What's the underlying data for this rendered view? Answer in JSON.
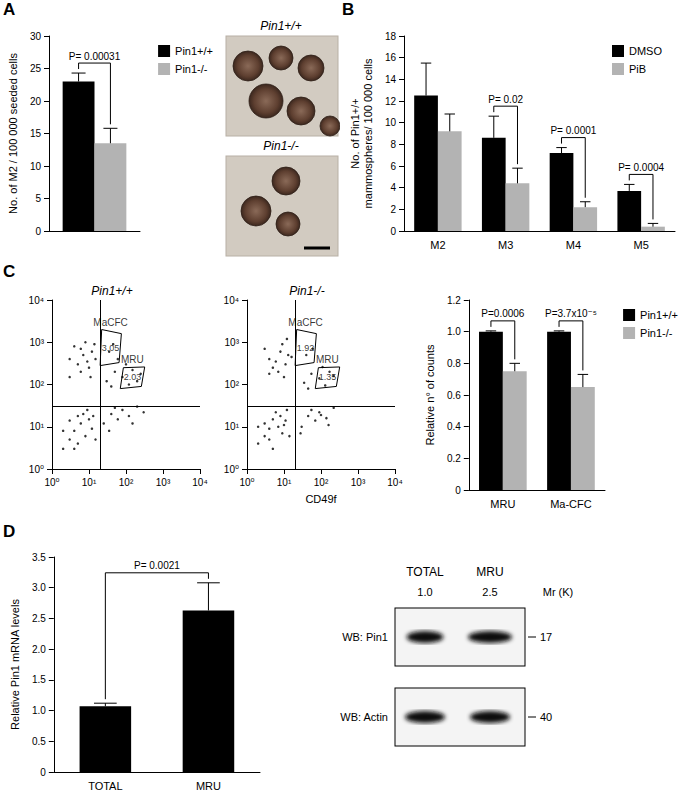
{
  "panel_labels": [
    "A",
    "B",
    "C",
    "D"
  ],
  "micrographs": {
    "labels": [
      "Pin1+/+",
      "Pin1-/-"
    ]
  },
  "chart_data": [
    {
      "type": "bar",
      "ylabel": "No. of M2 / 100 000 seeded cells",
      "categories": [
        null
      ],
      "series": [
        {
          "name": "Pin1+/+",
          "color": "#000000",
          "values": [
            23
          ],
          "errors": [
            1.3
          ]
        },
        {
          "name": "Pin1-/-",
          "color": "#b3b3b3",
          "values": [
            13.5
          ],
          "errors": [
            2.3
          ]
        }
      ],
      "ylim": [
        0,
        30
      ],
      "yticks": [
        0,
        5,
        10,
        15,
        20,
        25,
        30
      ],
      "grid": false,
      "legend": "right",
      "annotations": [
        {
          "text": "P= 0.00031",
          "category": null
        }
      ]
    },
    {
      "type": "bar",
      "ylabel": "No. of Pin1+/+ mammospheres/ 100 000 cells",
      "categories": [
        "M2",
        "M3",
        "M4",
        "M5"
      ],
      "series": [
        {
          "name": "DMSO",
          "color": "#000000",
          "values": [
            12.5,
            8.6,
            7.2,
            3.7
          ],
          "errors": [
            3.0,
            2.0,
            0.5,
            0.6
          ]
        },
        {
          "name": "PiB",
          "color": "#b3b3b3",
          "values": [
            9.2,
            4.4,
            2.2,
            0.4
          ],
          "errors": [
            1.6,
            1.4,
            0.5,
            0.3
          ]
        }
      ],
      "ylim": [
        0,
        18
      ],
      "yticks": [
        0,
        2,
        4,
        6,
        8,
        10,
        12,
        14,
        16,
        18
      ],
      "grid": false,
      "legend": "upper right",
      "annotations": [
        {
          "text": "P= 0.02",
          "category": "M3"
        },
        {
          "text": "P= 0.0001",
          "category": "M4"
        },
        {
          "text": "P= 0.0004",
          "category": "M5"
        }
      ]
    },
    {
      "type": "scatter",
      "title": "Pin1+/+",
      "log": true,
      "color": "#000000",
      "x": [
        2,
        3,
        4,
        5,
        6,
        8,
        10,
        12,
        3,
        7,
        15,
        2,
        9,
        5,
        4,
        13,
        3,
        5,
        7,
        4,
        10,
        12,
        6,
        8,
        15,
        3,
        11,
        14,
        9,
        6,
        25,
        40,
        60,
        80,
        120,
        200,
        300,
        35,
        50,
        150,
        30,
        50,
        80,
        100,
        150,
        200,
        60,
        40,
        120,
        250,
        35,
        45
      ],
      "y": [
        3,
        5,
        8,
        4,
        12,
        6,
        15,
        9,
        14,
        20,
        5,
        8,
        25,
        18,
        3,
        18,
        150,
        300,
        500,
        800,
        250,
        600,
        200,
        1000,
        400,
        400,
        150,
        900,
        350,
        700,
        12,
        20,
        15,
        25,
        18,
        30,
        22,
        8,
        28,
        12,
        120,
        200,
        150,
        300,
        220,
        120,
        400,
        90,
        100,
        180,
        600,
        900
      ],
      "xlim": [
        1,
        10000
      ],
      "ylim": [
        1,
        10000
      ],
      "xticks": [
        {
          "value": 1,
          "label": "10⁰"
        },
        {
          "value": 10,
          "label": "10¹"
        },
        {
          "value": 100,
          "label": "10²"
        },
        {
          "value": 1000,
          "label": "10³"
        },
        {
          "value": 10000,
          "label": "10⁴"
        }
      ],
      "yticks": [
        {
          "value": 1,
          "label": "10⁰"
        },
        {
          "value": 10,
          "label": "10¹"
        },
        {
          "value": 100,
          "label": "10²"
        },
        {
          "value": 1000,
          "label": "10³"
        },
        {
          "value": 10000,
          "label": "10⁴"
        }
      ],
      "grid": false,
      "quadrant": {
        "x": 20,
        "y": 30
      },
      "gates": [
        {
          "label": "MaCFC",
          "percent": 3.05,
          "polygon": [
            [
              20,
              280
            ],
            [
              65,
              330
            ],
            [
              75,
              1600
            ],
            [
              22,
              2000
            ]
          ]
        },
        {
          "label": "MRU",
          "percent": 2.03,
          "polygon": [
            [
              70,
              80
            ],
            [
              260,
              90
            ],
            [
              320,
              260
            ],
            [
              85,
              250
            ]
          ]
        }
      ]
    },
    {
      "type": "scatter",
      "title": "Pin1-/-",
      "xlabel": "CD49f",
      "log": true,
      "color": "#000000",
      "x": [
        2,
        3,
        5,
        4,
        7,
        9,
        11,
        3,
        6,
        14,
        2,
        8,
        5,
        12,
        4,
        10,
        4,
        6,
        8,
        3,
        11,
        13,
        5,
        9,
        16,
        7,
        12,
        10,
        4,
        30,
        45,
        70,
        90,
        140,
        220,
        28,
        55,
        160,
        100,
        35,
        55,
        90,
        110,
        170,
        45,
        130,
        220,
        40,
        60
      ],
      "y": [
        4,
        6,
        3,
        9,
        10,
        7,
        14,
        12,
        22,
        6,
        10,
        18,
        15,
        25,
        5,
        11,
        180,
        350,
        600,
        700,
        300,
        500,
        250,
        900,
        450,
        200,
        1200,
        150,
        400,
        10,
        18,
        14,
        22,
        16,
        28,
        7,
        25,
        11,
        19,
        110,
        180,
        140,
        260,
        200,
        80,
        95,
        160,
        500,
        700
      ],
      "xlim": [
        1,
        10000
      ],
      "ylim": [
        1,
        10000
      ],
      "xticks": [
        {
          "value": 1,
          "label": "10⁰"
        },
        {
          "value": 10,
          "label": "10¹"
        },
        {
          "value": 100,
          "label": "10²"
        },
        {
          "value": 1000,
          "label": "10³"
        },
        {
          "value": 10000,
          "label": "10⁴"
        }
      ],
      "yticks": [
        {
          "value": 1,
          "label": "10⁰"
        },
        {
          "value": 10,
          "label": "10¹"
        },
        {
          "value": 100,
          "label": "10²"
        },
        {
          "value": 1000,
          "label": "10³"
        },
        {
          "value": 10000,
          "label": "10⁴"
        }
      ],
      "grid": false,
      "quadrant": {
        "x": 20,
        "y": 30
      },
      "gates": [
        {
          "label": "MaCFC",
          "percent": 1.92,
          "polygon": [
            [
              20,
              280
            ],
            [
              65,
              330
            ],
            [
              75,
              1600
            ],
            [
              22,
              2000
            ]
          ]
        },
        {
          "label": "MRU",
          "percent": 1.35,
          "polygon": [
            [
              70,
              80
            ],
            [
              260,
              90
            ],
            [
              320,
              260
            ],
            [
              85,
              250
            ]
          ]
        }
      ]
    },
    {
      "type": "bar",
      "ylabel": "Relative n° of counts",
      "categories": [
        "MRU",
        "Ma-CFC"
      ],
      "series": [
        {
          "name": "Pin1+/+",
          "color": "#000000",
          "values": [
            1,
            1
          ],
          "errors": [
            0.005,
            0.005
          ]
        },
        {
          "name": "Pin1-/-",
          "color": "#b3b3b3",
          "values": [
            0.75,
            0.65
          ],
          "errors": [
            0.05,
            0.08
          ]
        }
      ],
      "ylim": [
        0,
        1.2
      ],
      "yticks": [
        0,
        0.2,
        0.4,
        0.6,
        0.8,
        {
          "value": 1,
          "label": "1.0"
        },
        1.2
      ],
      "grid": false,
      "legend": "right",
      "annotations": [
        {
          "text": "P=0.0006",
          "category": "MRU"
        },
        {
          "text": "P=3.7x10⁻⁵",
          "category": "Ma-CFC"
        }
      ]
    },
    {
      "type": "bar",
      "ylabel": "Relative Pin1 mRNA levels",
      "categories": [
        "TOTAL",
        "MRU"
      ],
      "series": [
        {
          "name": "Pin1 mRNA",
          "color": "#000000",
          "values": [
            1.07,
            2.63
          ],
          "errors": [
            0.05,
            0.45
          ]
        }
      ],
      "ylim": [
        0,
        3.5
      ],
      "yticks": [
        0,
        0.5,
        {
          "value": 1,
          "label": "1.0"
        },
        1.5,
        {
          "value": 2,
          "label": "2.0"
        },
        2.5,
        {
          "value": 3,
          "label": "3.0"
        },
        3.5
      ],
      "grid": false,
      "annotations": [
        {
          "text": "P= 0.0021",
          "categories": [
            "TOTAL",
            "MRU"
          ]
        }
      ]
    }
  ],
  "blot": {
    "columns": [
      "TOTAL",
      "MRU"
    ],
    "quantification": [
      {
        "value": 1,
        "label": "1.0"
      },
      {
        "value": 2.5,
        "label": "2.5"
      }
    ],
    "marker_title": "Mr (K)",
    "rows": [
      {
        "label": "WB: Pin1",
        "marker": 17
      },
      {
        "label": "WB: Actin",
        "marker": 40
      }
    ]
  }
}
